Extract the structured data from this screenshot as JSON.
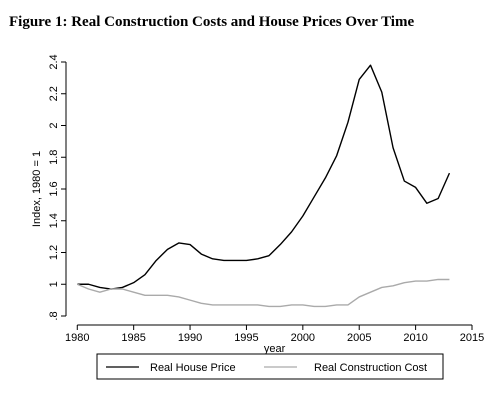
{
  "figure_title": "Figure 1:  Real Construction Costs and House Prices Over Time",
  "chart_data": {
    "type": "line",
    "title": "Figure 1:  Real Construction Costs and House Prices Over Time",
    "xlabel": "year",
    "ylabel": "Index, 1980 = 1",
    "xlim": [
      1979,
      2015
    ],
    "ylim": [
      0.8,
      2.4
    ],
    "xticks": [
      1980,
      1985,
      1990,
      1995,
      2000,
      2005,
      2010,
      2015
    ],
    "yticks": [
      0.8,
      1,
      1.2,
      1.4,
      1.6,
      1.8,
      2,
      2.2,
      2.4
    ],
    "xtick_labels": [
      "1980",
      "1985",
      "1990",
      "1995",
      "2000",
      "2005",
      "2010",
      "2015"
    ],
    "ytick_labels": [
      ".8",
      "1",
      "1.2",
      "1.4",
      "1.6",
      "1.8",
      "2",
      "2.2",
      "2.4"
    ],
    "grid": false,
    "legend_position": "bottom",
    "series": [
      {
        "name": "Real House Price",
        "color": "#000000",
        "x": [
          1980,
          1981,
          1982,
          1983,
          1984,
          1985,
          1986,
          1987,
          1988,
          1989,
          1990,
          1991,
          1992,
          1993,
          1994,
          1995,
          1996,
          1997,
          1998,
          1999,
          2000,
          2001,
          2002,
          2003,
          2004,
          2005,
          2006,
          2007,
          2008,
          2009,
          2010,
          2011,
          2012,
          2013
        ],
        "y": [
          1.0,
          1.0,
          0.98,
          0.97,
          0.98,
          1.01,
          1.06,
          1.15,
          1.22,
          1.26,
          1.25,
          1.19,
          1.16,
          1.15,
          1.15,
          1.15,
          1.16,
          1.18,
          1.25,
          1.33,
          1.43,
          1.55,
          1.67,
          1.81,
          2.02,
          2.29,
          2.38,
          2.21,
          1.86,
          1.65,
          1.61,
          1.51,
          1.54,
          1.7
        ]
      },
      {
        "name": "Real Construction Cost",
        "color": "#aaaaaa",
        "x": [
          1980,
          1981,
          1982,
          1983,
          1984,
          1985,
          1986,
          1987,
          1988,
          1989,
          1990,
          1991,
          1992,
          1993,
          1994,
          1995,
          1996,
          1997,
          1998,
          1999,
          2000,
          2001,
          2002,
          2003,
          2004,
          2005,
          2006,
          2007,
          2008,
          2009,
          2010,
          2011,
          2012,
          2013
        ],
        "y": [
          1.0,
          0.97,
          0.95,
          0.97,
          0.97,
          0.95,
          0.93,
          0.93,
          0.93,
          0.92,
          0.9,
          0.88,
          0.87,
          0.87,
          0.87,
          0.87,
          0.87,
          0.86,
          0.86,
          0.87,
          0.87,
          0.86,
          0.86,
          0.87,
          0.87,
          0.92,
          0.95,
          0.98,
          0.99,
          1.01,
          1.02,
          1.02,
          1.03,
          1.03
        ]
      }
    ]
  }
}
